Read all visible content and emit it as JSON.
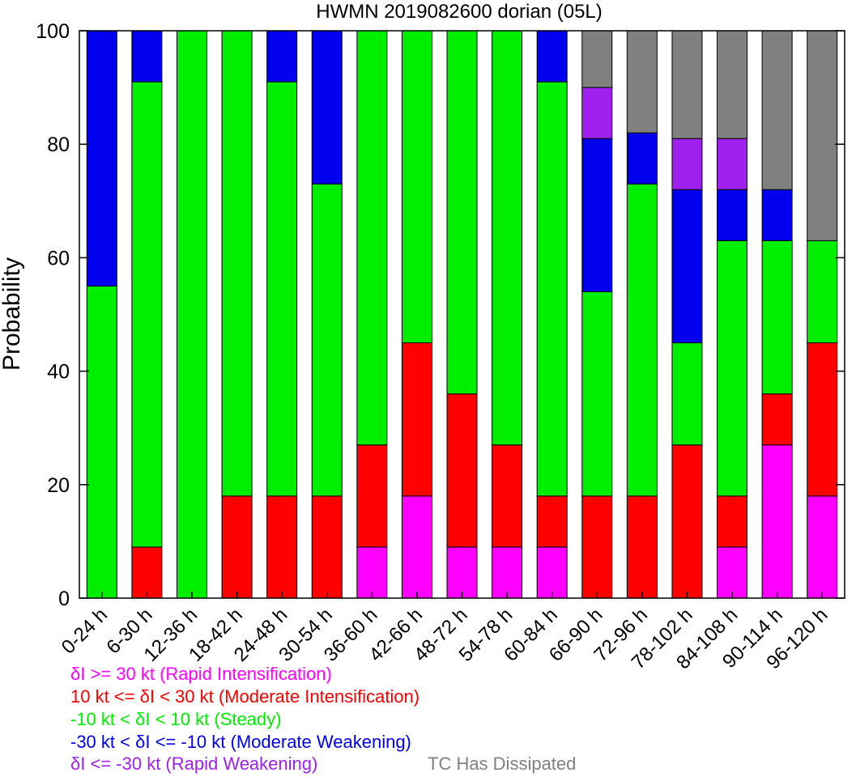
{
  "chart_data": {
    "type": "bar",
    "stacked": true,
    "title": "HWMN 2019082600 dorian (05L)",
    "xlabel": "",
    "ylabel": "Probability",
    "ylim": [
      0,
      100
    ],
    "yticks": [
      0,
      20,
      40,
      60,
      80,
      100
    ],
    "grid": false,
    "legend_placement": "bottom-left",
    "categories": [
      "0-24 h",
      "6-30 h",
      "12-36 h",
      "18-42 h",
      "24-48 h",
      "30-54 h",
      "36-60 h",
      "42-66 h",
      "48-72 h",
      "54-78 h",
      "60-84 h",
      "66-90 h",
      "72-96 h",
      "78-102 h",
      "84-108 h",
      "90-114 h",
      "96-120 h"
    ],
    "series": [
      {
        "name": "δI >= 30 kt (Rapid Intensification)",
        "color": "#ff00ff",
        "values": [
          0,
          0,
          0,
          0,
          0,
          0,
          9,
          18,
          9,
          9,
          9,
          0,
          0,
          0,
          9,
          27,
          18
        ]
      },
      {
        "name": "10 kt <= δI < 30 kt (Moderate Intensification)",
        "color": "#ff0000",
        "values": [
          0,
          9,
          0,
          18,
          18,
          18,
          18,
          27,
          27,
          18,
          9,
          18,
          18,
          27,
          9,
          9,
          27
        ]
      },
      {
        "name": "-10 kt < δI < 10 kt (Steady)",
        "color": "#00ee00",
        "values": [
          55,
          82,
          100,
          82,
          73,
          55,
          73,
          55,
          64,
          73,
          73,
          36,
          55,
          18,
          45,
          27,
          18
        ]
      },
      {
        "name": "-30 kt < δI <= -10 kt (Moderate Weakening)",
        "color": "#0000ee",
        "values": [
          45,
          9,
          0,
          0,
          9,
          27,
          0,
          0,
          0,
          0,
          9,
          27,
          9,
          27,
          9,
          9,
          0
        ]
      },
      {
        "name": "δI <= -30 kt (Rapid Weakening)",
        "color": "#a020f0",
        "values": [
          0,
          0,
          0,
          0,
          0,
          0,
          0,
          0,
          0,
          0,
          0,
          9,
          0,
          9,
          9,
          0,
          0
        ]
      },
      {
        "name": "TC Has Dissipated",
        "color": "#808080",
        "values": [
          0,
          0,
          0,
          0,
          0,
          0,
          0,
          0,
          0,
          0,
          0,
          10,
          18,
          19,
          19,
          28,
          37
        ]
      }
    ]
  }
}
